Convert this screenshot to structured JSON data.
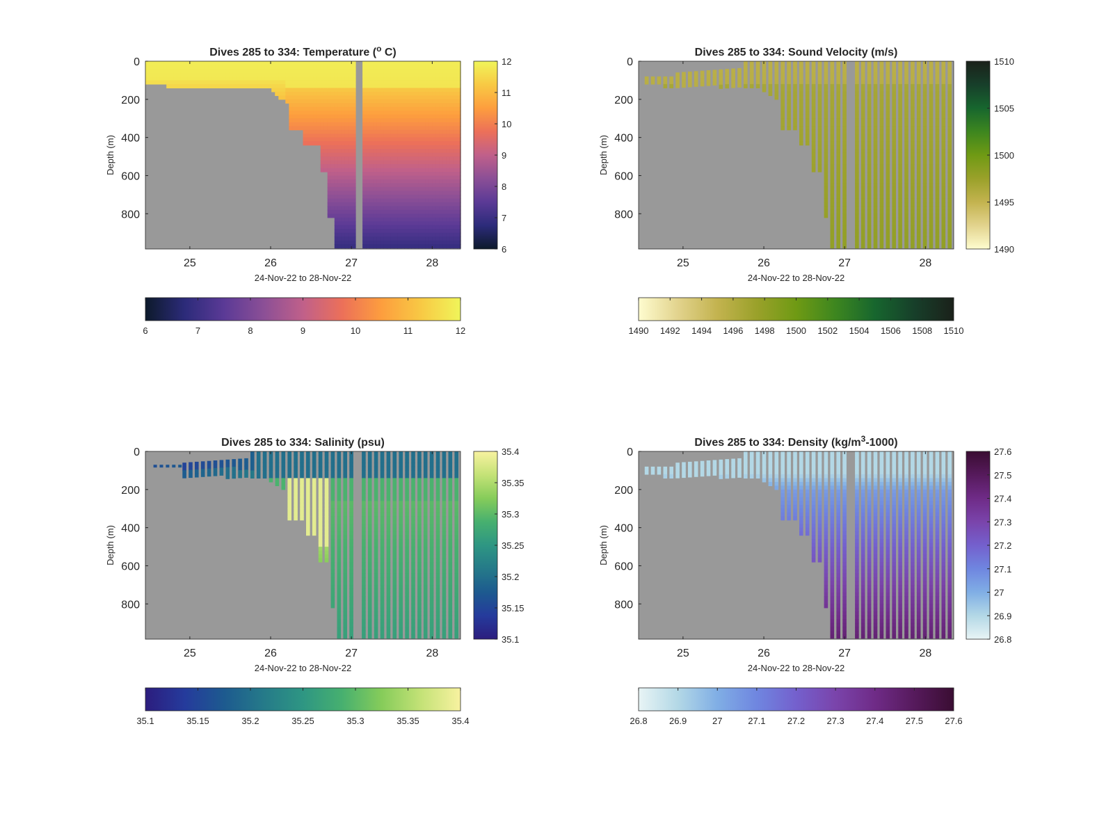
{
  "chart_data": [
    {
      "type": "heatmap",
      "title": "Dives 285 to 334: Temperature (",
      "title_super": "o",
      "title_tail": " C)",
      "xlabel": "24-Nov-22 to 28-Nov-22",
      "ylabel": "Depth (m)",
      "xlim": [
        24.45,
        28.35
      ],
      "ylim": [
        0,
        985
      ],
      "y_reversed": true,
      "xticks": [
        "25",
        "26",
        "27",
        "28"
      ],
      "yticks": [
        "0",
        "200",
        "400",
        "600",
        "800"
      ],
      "clim": [
        6,
        12
      ],
      "colormap": [
        "#0d1a2b",
        "#2c2b7a",
        "#5b3a96",
        "#8b4f96",
        "#c0608a",
        "#ec7059",
        "#fd9e3e",
        "#f8c944",
        "#f0f55a"
      ],
      "colorbar_ticks": [
        "6",
        "7",
        "8",
        "9",
        "10",
        "11",
        "12"
      ],
      "h_colorbar_ticks": [
        "6",
        "7",
        "8",
        "9",
        "10",
        "11",
        "12"
      ],
      "no_data_color": "#999999",
      "field": "temperature",
      "gap_days": [
        27.1
      ],
      "sampling": "continuous"
    },
    {
      "type": "heatmap",
      "title": "Dives 285 to 334: Sound Velocity (m/s)",
      "title_super": "",
      "title_tail": "",
      "xlabel": "24-Nov-22 to 28-Nov-22",
      "ylabel": "Depth (m)",
      "xlim": [
        24.45,
        28.35
      ],
      "ylim": [
        0,
        985
      ],
      "y_reversed": true,
      "xticks": [
        "25",
        "26",
        "27",
        "28"
      ],
      "yticks": [
        "0",
        "200",
        "400",
        "600",
        "800"
      ],
      "clim": [
        1490,
        1510
      ],
      "colormap": [
        "#fefccf",
        "#e2d38d",
        "#c3b34f",
        "#9aa12a",
        "#6f9a14",
        "#3d861f",
        "#17662e",
        "#173f2a",
        "#1b211a"
      ],
      "colorbar_ticks": [
        "1490",
        "1495",
        "1500",
        "1505",
        "1510"
      ],
      "h_colorbar_ticks": [
        "1490",
        "1492",
        "1494",
        "1496",
        "1498",
        "1500",
        "1502",
        "1504",
        "1506",
        "1508",
        "1510"
      ],
      "no_data_color": "#999999",
      "field": "sound",
      "gap_days": [
        27.1
      ],
      "sampling": "dives"
    },
    {
      "type": "heatmap",
      "title": "Dives 285 to 334: Salinity (psu)",
      "title_super": "",
      "title_tail": "",
      "xlabel": "24-Nov-22 to 28-Nov-22",
      "ylabel": "Depth (m)",
      "xlim": [
        24.45,
        28.35
      ],
      "ylim": [
        0,
        985
      ],
      "y_reversed": true,
      "xticks": [
        "25",
        "26",
        "27",
        "28"
      ],
      "yticks": [
        "0",
        "200",
        "400",
        "600",
        "800"
      ],
      "clim": [
        35.1,
        35.4
      ],
      "colormap": [
        "#2c1d7e",
        "#253b9c",
        "#1d5a8f",
        "#257a89",
        "#2e9683",
        "#47b06f",
        "#86cc5a",
        "#c4e277",
        "#f8f2a0"
      ],
      "colorbar_ticks": [
        "35.1",
        "35.15",
        "35.2",
        "35.25",
        "35.3",
        "35.35",
        "35.4"
      ],
      "h_colorbar_ticks": [
        "35.1",
        "35.15",
        "35.2",
        "35.25",
        "35.3",
        "35.35",
        "35.4"
      ],
      "no_data_color": "#999999",
      "field": "salinity",
      "gap_days": [
        27.1
      ],
      "sampling": "dives"
    },
    {
      "type": "heatmap",
      "title": "Dives 285 to 334: Density (kg/m",
      "title_super": "3",
      "title_tail": "-1000)",
      "xlabel": "24-Nov-22 to 28-Nov-22",
      "ylabel": "Depth (m)",
      "xlim": [
        24.45,
        28.35
      ],
      "ylim": [
        0,
        985
      ],
      "y_reversed": true,
      "xticks": [
        "25",
        "26",
        "27",
        "28"
      ],
      "yticks": [
        "0",
        "200",
        "400",
        "600",
        "800"
      ],
      "clim": [
        26.8,
        27.6
      ],
      "colormap": [
        "#e8f4f5",
        "#b3d8e6",
        "#80aee5",
        "#6f86e0",
        "#7460cd",
        "#7a44ab",
        "#6f2b87",
        "#561a5c",
        "#3a0d32"
      ],
      "colorbar_ticks": [
        "26.8",
        "26.9",
        "27",
        "27.1",
        "27.2",
        "27.3",
        "27.4",
        "27.5",
        "27.6"
      ],
      "h_colorbar_ticks": [
        "26.8",
        "26.9",
        "27",
        "27.1",
        "27.2",
        "27.3",
        "27.4",
        "27.5",
        "27.6"
      ],
      "no_data_color": "#999999",
      "field": "density",
      "gap_days": [
        27.1
      ],
      "sampling": "dives"
    }
  ]
}
